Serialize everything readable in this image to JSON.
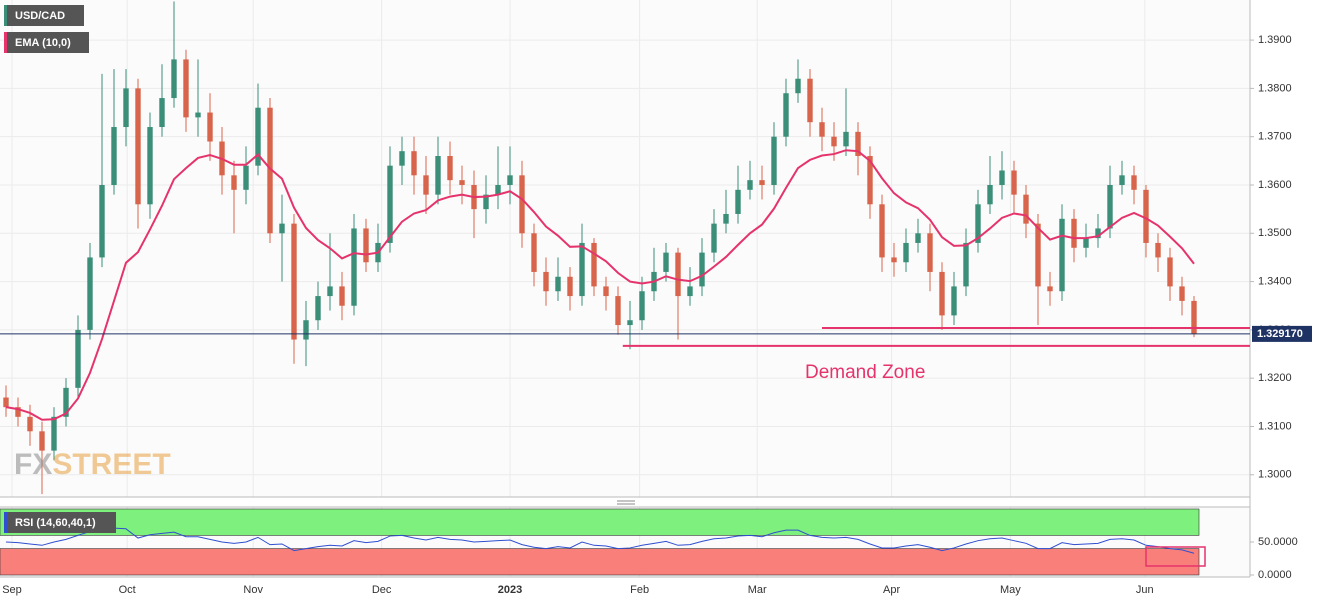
{
  "chart_data": {
    "type": "candlestick",
    "title": "USD/CAD",
    "series": [
      {
        "name": "USD/CAD",
        "up_color": "#3b8f79",
        "down_color": "#d8654b",
        "open": [
          1.316,
          1.314,
          1.312,
          1.309,
          1.305,
          1.312,
          1.318,
          1.33,
          1.345,
          1.36,
          1.372,
          1.38,
          1.356,
          1.372,
          1.378,
          1.386,
          1.374,
          1.375,
          1.369,
          1.362,
          1.359,
          1.364,
          1.376,
          1.35,
          1.352,
          1.328,
          1.332,
          1.337,
          1.339,
          1.335,
          1.351,
          1.344,
          1.348,
          1.364,
          1.367,
          1.362,
          1.358,
          1.366,
          1.361,
          1.36,
          1.355,
          1.358,
          1.36,
          1.362,
          1.35,
          1.342,
          1.338,
          1.341,
          1.337,
          1.348,
          1.339,
          1.337,
          1.331,
          1.332,
          1.338,
          1.342,
          1.346,
          1.337,
          1.339,
          1.346,
          1.352,
          1.354,
          1.359,
          1.361,
          1.36,
          1.37,
          1.379,
          1.382,
          1.373,
          1.37,
          1.368,
          1.371,
          1.366,
          1.356,
          1.345,
          1.344,
          1.348,
          1.35,
          1.342,
          1.333,
          1.339,
          1.348,
          1.356,
          1.36,
          1.363,
          1.358,
          1.352,
          1.339,
          1.338,
          1.353,
          1.347,
          1.349,
          1.351,
          1.36,
          1.362,
          1.359,
          1.348,
          1.345,
          1.339,
          1.336
        ],
        "high": [
          1.3185,
          1.316,
          1.3145,
          1.311,
          1.314,
          1.32,
          1.333,
          1.348,
          1.383,
          1.384,
          1.384,
          1.382,
          1.375,
          1.385,
          1.398,
          1.388,
          1.386,
          1.379,
          1.372,
          1.365,
          1.368,
          1.381,
          1.378,
          1.358,
          1.354,
          1.336,
          1.34,
          1.35,
          1.342,
          1.354,
          1.353,
          1.352,
          1.368,
          1.37,
          1.37,
          1.366,
          1.37,
          1.369,
          1.364,
          1.363,
          1.362,
          1.368,
          1.368,
          1.365,
          1.352,
          1.345,
          1.345,
          1.343,
          1.352,
          1.349,
          1.341,
          1.339,
          1.336,
          1.341,
          1.347,
          1.348,
          1.347,
          1.343,
          1.349,
          1.355,
          1.359,
          1.364,
          1.365,
          1.364,
          1.373,
          1.382,
          1.386,
          1.384,
          1.376,
          1.373,
          1.38,
          1.373,
          1.368,
          1.358,
          1.348,
          1.351,
          1.353,
          1.352,
          1.344,
          1.342,
          1.351,
          1.359,
          1.366,
          1.367,
          1.365,
          1.36,
          1.354,
          1.342,
          1.356,
          1.355,
          1.352,
          1.354,
          1.364,
          1.365,
          1.364,
          1.36,
          1.35,
          1.347,
          1.341,
          1.337
        ],
        "low": [
          1.312,
          1.31,
          1.306,
          1.296,
          1.303,
          1.31,
          1.316,
          1.328,
          1.343,
          1.358,
          1.368,
          1.351,
          1.353,
          1.37,
          1.376,
          1.371,
          1.37,
          1.365,
          1.358,
          1.35,
          1.356,
          1.362,
          1.348,
          1.34,
          1.323,
          1.3225,
          1.33,
          1.334,
          1.332,
          1.333,
          1.342,
          1.342,
          1.346,
          1.36,
          1.358,
          1.354,
          1.356,
          1.358,
          1.356,
          1.349,
          1.352,
          1.355,
          1.356,
          1.347,
          1.339,
          1.335,
          1.336,
          1.334,
          1.335,
          1.337,
          1.334,
          1.329,
          1.326,
          1.33,
          1.336,
          1.34,
          1.328,
          1.335,
          1.337,
          1.344,
          1.35,
          1.352,
          1.357,
          1.357,
          1.358,
          1.368,
          1.377,
          1.37,
          1.367,
          1.365,
          1.366,
          1.362,
          1.353,
          1.342,
          1.341,
          1.342,
          1.346,
          1.338,
          1.33,
          1.331,
          1.337,
          1.346,
          1.354,
          1.357,
          1.354,
          1.349,
          1.331,
          1.335,
          1.336,
          1.344,
          1.345,
          1.347,
          1.349,
          1.358,
          1.356,
          1.345,
          1.342,
          1.336,
          1.333,
          1.3285
        ],
        "close": [
          1.314,
          1.312,
          1.309,
          1.305,
          1.312,
          1.318,
          1.33,
          1.345,
          1.36,
          1.372,
          1.38,
          1.356,
          1.372,
          1.378,
          1.386,
          1.374,
          1.375,
          1.369,
          1.362,
          1.359,
          1.364,
          1.376,
          1.35,
          1.352,
          1.328,
          1.332,
          1.337,
          1.339,
          1.335,
          1.351,
          1.344,
          1.348,
          1.364,
          1.367,
          1.362,
          1.358,
          1.366,
          1.361,
          1.36,
          1.355,
          1.358,
          1.36,
          1.362,
          1.35,
          1.342,
          1.338,
          1.341,
          1.337,
          1.348,
          1.339,
          1.337,
          1.331,
          1.332,
          1.338,
          1.342,
          1.346,
          1.337,
          1.339,
          1.346,
          1.352,
          1.354,
          1.359,
          1.361,
          1.36,
          1.37,
          1.379,
          1.382,
          1.373,
          1.37,
          1.368,
          1.371,
          1.366,
          1.356,
          1.345,
          1.344,
          1.348,
          1.35,
          1.342,
          1.333,
          1.339,
          1.348,
          1.356,
          1.36,
          1.363,
          1.358,
          1.352,
          1.339,
          1.338,
          1.353,
          1.347,
          1.349,
          1.351,
          1.36,
          1.362,
          1.359,
          1.348,
          1.345,
          1.339,
          1.336,
          1.3292
        ]
      }
    ],
    "ema": {
      "name": "EMA (10,0)",
      "color": "#e5336c",
      "values": [
        1.314,
        1.3136,
        1.3128,
        1.3114,
        1.3115,
        1.3127,
        1.3158,
        1.3211,
        1.3281,
        1.336,
        1.3439,
        1.3461,
        1.3508,
        1.3557,
        1.3612,
        1.3635,
        1.3656,
        1.3662,
        1.3654,
        1.3642,
        1.3642,
        1.3663,
        1.3634,
        1.3613,
        1.3553,
        1.3511,
        1.3486,
        1.3469,
        1.3448,
        1.3459,
        1.3456,
        1.346,
        1.3492,
        1.3524,
        1.3541,
        1.3548,
        1.3568,
        1.3576,
        1.358,
        1.3575,
        1.3576,
        1.358,
        1.3587,
        1.3571,
        1.3544,
        1.3514,
        1.3495,
        1.3472,
        1.3473,
        1.3458,
        1.3442,
        1.3418,
        1.34,
        1.3396,
        1.34,
        1.3411,
        1.3404,
        1.3401,
        1.3412,
        1.3431,
        1.3451,
        1.3476,
        1.35,
        1.3518,
        1.3551,
        1.3594,
        1.3635,
        1.3652,
        1.3661,
        1.3664,
        1.3672,
        1.367,
        1.365,
        1.3614,
        1.3583,
        1.3564,
        1.3552,
        1.3528,
        1.3492,
        1.3474,
        1.3475,
        1.349,
        1.351,
        1.3532,
        1.3541,
        1.3537,
        1.3511,
        1.3487,
        1.3495,
        1.349,
        1.349,
        1.3494,
        1.3513,
        1.3532,
        1.3542,
        1.3531,
        1.3516,
        1.3493,
        1.3469,
        1.3437
      ]
    },
    "xlim": [
      -0.5,
      103.6667
    ],
    "xticks": [
      {
        "value": 0.5,
        "label": "Sep"
      },
      {
        "value": 10.1,
        "label": "Oct"
      },
      {
        "value": 20.6,
        "label": "Nov"
      },
      {
        "value": 31.3,
        "label": "Dec"
      },
      {
        "value": 42,
        "label": "2023"
      },
      {
        "value": 52.8,
        "label": "Feb"
      },
      {
        "value": 62.6,
        "label": "Mar"
      },
      {
        "value": 73.8,
        "label": "Apr"
      },
      {
        "value": 83.7,
        "label": "May"
      },
      {
        "value": 94.9,
        "label": "Jun"
      }
    ],
    "ylim": [
      1.2954,
      1.3983
    ],
    "yticks": [
      {
        "value": 1.3,
        "label": "1.3000"
      },
      {
        "value": 1.31,
        "label": "1.3100"
      },
      {
        "value": 1.32,
        "label": "1.3200"
      },
      {
        "value": 1.33,
        "label": "1.3300"
      },
      {
        "value": 1.34,
        "label": "1.3400"
      },
      {
        "value": 1.35,
        "label": "1.3500"
      },
      {
        "value": 1.36,
        "label": "1.3600"
      },
      {
        "value": 1.37,
        "label": "1.3700"
      },
      {
        "value": 1.38,
        "label": "1.3800"
      },
      {
        "value": 1.39,
        "label": "1.3900"
      }
    ],
    "grid": true,
    "last_price": {
      "value": 1.32917,
      "label": "1.329170",
      "color": "#1e3264"
    },
    "levels": [
      {
        "value": 1.3304,
        "from": 68,
        "color": "#e5336c"
      },
      {
        "value": 1.3267,
        "from": 51.4,
        "color": "#e5336c"
      }
    ],
    "annotation": {
      "text": "Demand Zone",
      "x": 71.6,
      "y": 1.3211
    },
    "watermark": [
      "FX",
      "STREET"
    ],
    "rsi": {
      "name": "RSI (14,60,40,1)",
      "color": "#2f4fd0",
      "upper": 60,
      "lower": 40,
      "ylim": [
        0,
        100
      ],
      "yticks": [
        {
          "value": 0,
          "label": "0.0000"
        },
        {
          "value": 50,
          "label": "50.0000"
        }
      ],
      "values": [
        50,
        49,
        47,
        45,
        50,
        54,
        60,
        66,
        70,
        71,
        70,
        56,
        61,
        63,
        65,
        58,
        58,
        54,
        50,
        48,
        50,
        57,
        46,
        47,
        37,
        40,
        43,
        45,
        44,
        52,
        49,
        51,
        59,
        60,
        56,
        53,
        57,
        54,
        53,
        50,
        51,
        52,
        53,
        46,
        42,
        40,
        43,
        41,
        50,
        45,
        44,
        40,
        41,
        45,
        48,
        51,
        45,
        46,
        51,
        55,
        56,
        59,
        60,
        58,
        64,
        68,
        68,
        60,
        57,
        56,
        57,
        54,
        47,
        41,
        41,
        44,
        46,
        42,
        37,
        41,
        47,
        52,
        55,
        56,
        52,
        48,
        40,
        40,
        49,
        46,
        47,
        48,
        54,
        55,
        53,
        45,
        43,
        40,
        38,
        33
      ]
    }
  }
}
